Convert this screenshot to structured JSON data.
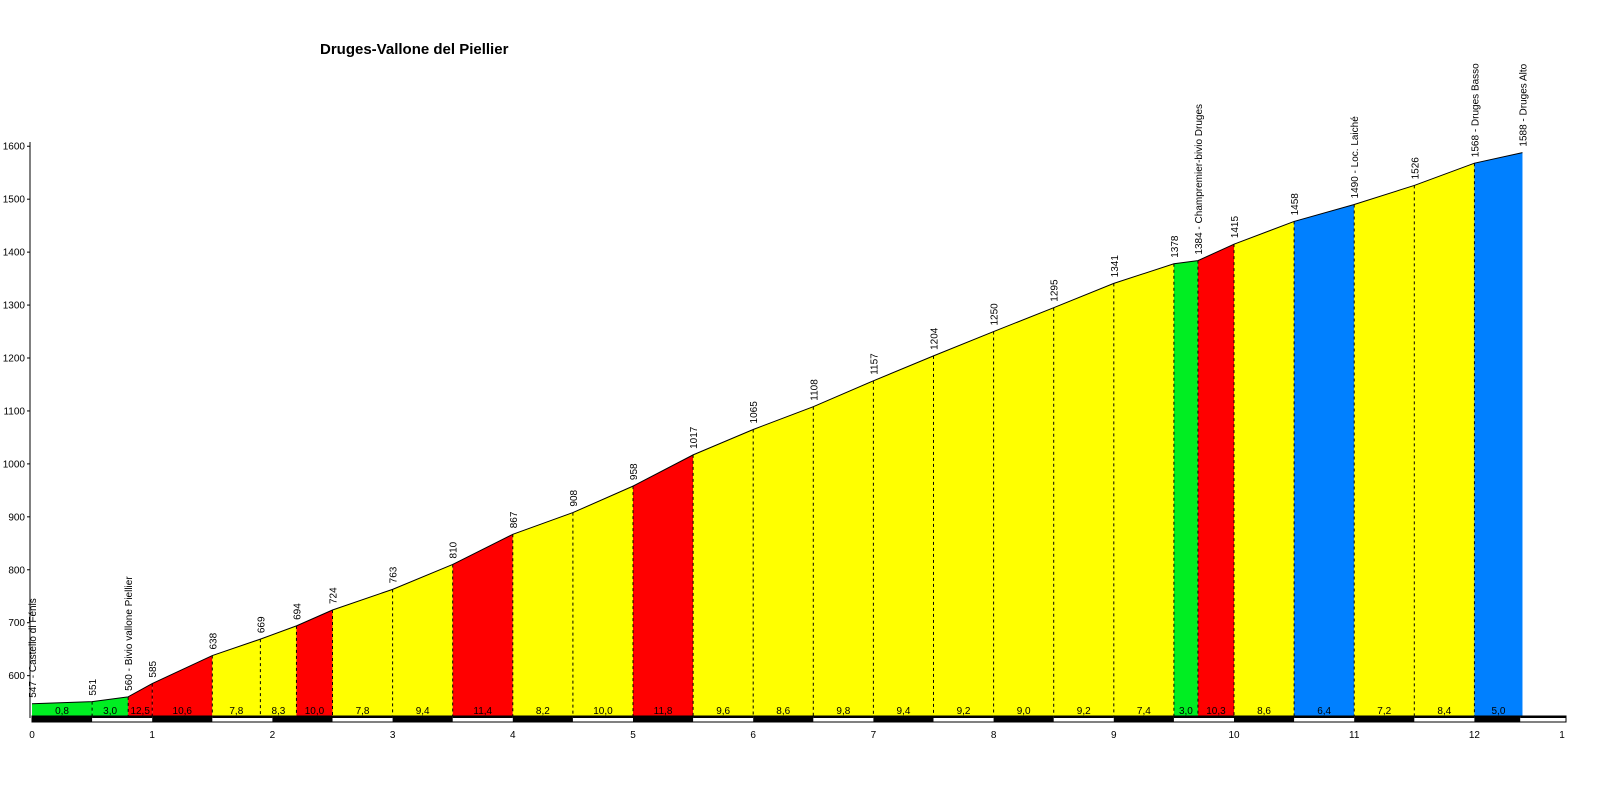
{
  "chart_data": {
    "type": "area",
    "title": "Druges-Vallone del Piellier",
    "xlabel": "",
    "ylabel": "",
    "xlim": [
      0,
      13
    ],
    "ylim": [
      520,
      1600
    ],
    "y_ticks": [
      "600",
      "700",
      "800",
      "900",
      "1000",
      "1100",
      "1200",
      "1300",
      "1400",
      "1500",
      "1600"
    ],
    "x_ticks": [
      "0",
      "1",
      "2",
      "3",
      "4",
      "5",
      "6",
      "7",
      "8",
      "9",
      "10",
      "11",
      "12",
      "1"
    ],
    "profile_points": [
      {
        "x": 0.0,
        "y": 547,
        "label": "547 - Castello di Fénis"
      },
      {
        "x": 0.5,
        "y": 551,
        "label": "551"
      },
      {
        "x": 0.8,
        "y": 560,
        "label": "560 - Bivio vallone Piellier"
      },
      {
        "x": 1.0,
        "y": 585,
        "label": "585"
      },
      {
        "x": 1.5,
        "y": 638,
        "label": "638"
      },
      {
        "x": 1.9,
        "y": 669,
        "label": "669"
      },
      {
        "x": 2.2,
        "y": 694,
        "label": "694"
      },
      {
        "x": 2.5,
        "y": 724,
        "label": "724"
      },
      {
        "x": 3.0,
        "y": 763,
        "label": "763"
      },
      {
        "x": 3.5,
        "y": 810,
        "label": "810"
      },
      {
        "x": 4.0,
        "y": 867,
        "label": "867"
      },
      {
        "x": 4.5,
        "y": 908,
        "label": "908"
      },
      {
        "x": 5.0,
        "y": 958,
        "label": "958"
      },
      {
        "x": 5.5,
        "y": 1017,
        "label": "1017"
      },
      {
        "x": 6.0,
        "y": 1065,
        "label": "1065"
      },
      {
        "x": 6.5,
        "y": 1108,
        "label": "1108"
      },
      {
        "x": 7.0,
        "y": 1157,
        "label": "1157"
      },
      {
        "x": 7.5,
        "y": 1204,
        "label": "1204"
      },
      {
        "x": 8.0,
        "y": 1250,
        "label": "1250"
      },
      {
        "x": 8.5,
        "y": 1295,
        "label": "1295"
      },
      {
        "x": 9.0,
        "y": 1341,
        "label": "1341"
      },
      {
        "x": 9.5,
        "y": 1378,
        "label": "1378"
      },
      {
        "x": 9.7,
        "y": 1384,
        "label": "1384 - Champremier-bivio Druges"
      },
      {
        "x": 10.0,
        "y": 1415,
        "label": "1415"
      },
      {
        "x": 10.5,
        "y": 1458,
        "label": "1458"
      },
      {
        "x": 11.0,
        "y": 1490,
        "label": "1490 - Loc. Laiché"
      },
      {
        "x": 11.5,
        "y": 1526,
        "label": "1526"
      },
      {
        "x": 12.0,
        "y": 1568,
        "label": "1568 - Druges Basso"
      },
      {
        "x": 12.4,
        "y": 1588,
        "label": "1588 - Druges Alto"
      }
    ],
    "segment_gradients": [
      "0,8",
      "3,0",
      "12,5",
      "10,6",
      "7,8",
      "8,3",
      "10,0",
      "7,8",
      "9,4",
      "11,4",
      "8,2",
      "10,0",
      "11,8",
      "9,6",
      "8,6",
      "9,8",
      "9,4",
      "9,2",
      "9,0",
      "9,2",
      "7,4",
      "3,0",
      "10,3",
      "8,6",
      "6,4",
      "7,2",
      "8,4",
      "5,0"
    ],
    "segment_colors": [
      "#00ee22",
      "#00ee22",
      "#ff0000",
      "#ff0000",
      "#ffff00",
      "#ffff00",
      "#ff0000",
      "#ffff00",
      "#ffff00",
      "#ff0000",
      "#ffff00",
      "#ffff00",
      "#ff0000",
      "#ffff00",
      "#ffff00",
      "#ffff00",
      "#ffff00",
      "#ffff00",
      "#ffff00",
      "#ffff00",
      "#ffff00",
      "#00ee22",
      "#ff0000",
      "#ffff00",
      "#0080ff",
      "#ffff00",
      "#ffff00",
      "#0080ff"
    ],
    "legend_colors": {
      "green": "#00ee22",
      "yellow": "#ffff00",
      "red": "#ff0000",
      "blue": "#0080ff"
    },
    "grid": false
  }
}
